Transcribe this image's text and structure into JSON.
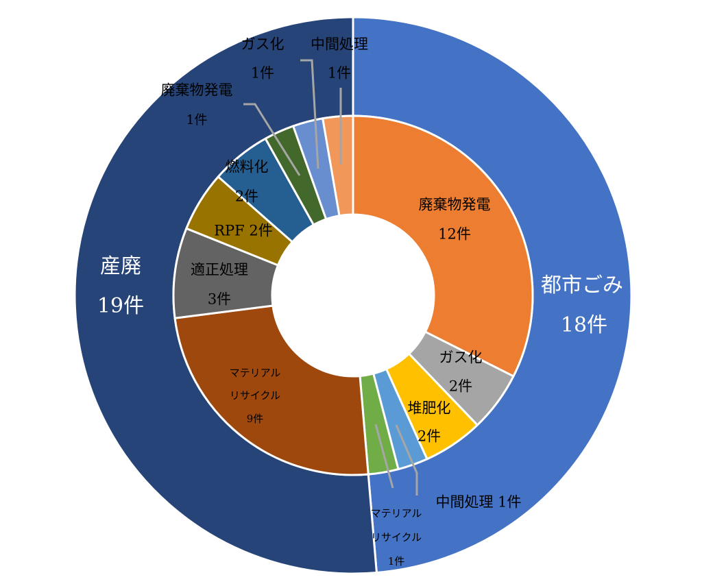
{
  "chart_data": {
    "type": "pie",
    "variant": "nested-donut",
    "outer": [
      {
        "label": "都市ごみ",
        "count": "18件",
        "value": 18,
        "color": "#4472C4"
      },
      {
        "label": "産廃",
        "count": "19件",
        "value": 19,
        "color": "#264478"
      }
    ],
    "inner": [
      {
        "label": "廃棄物発電",
        "count": "12件",
        "value": 12,
        "color": "#ED7D31",
        "group": "都市ごみ"
      },
      {
        "label": "ガス化",
        "count": "2件",
        "value": 2,
        "color": "#A5A5A5",
        "group": "都市ごみ"
      },
      {
        "label": "堆肥化",
        "count": "2件",
        "value": 2,
        "color": "#FFC000",
        "group": "都市ごみ"
      },
      {
        "label": "中間処理 1件",
        "count": "",
        "value": 1,
        "color": "#5B9BD5",
        "group": "都市ごみ"
      },
      {
        "label": "マテリアル",
        "label2": "リサイクル",
        "count": "1件",
        "value": 1,
        "color": "#70AD47",
        "group": "都市ごみ"
      },
      {
        "label": "マテリアル",
        "label2": "リサイクル",
        "count": "9件",
        "value": 9,
        "color": "#9E480E",
        "group": "産廃"
      },
      {
        "label": "適正処理",
        "count": "3件",
        "value": 3,
        "color": "#636363",
        "group": "産廃"
      },
      {
        "label": "RPF 2件",
        "count": "",
        "value": 2,
        "color": "#997300",
        "group": "産廃"
      },
      {
        "label": "燃料化",
        "count": "2件",
        "value": 2,
        "color": "#255E91",
        "group": "産廃"
      },
      {
        "label": "廃棄物発電",
        "count": "1件",
        "value": 1,
        "color": "#43682B",
        "group": "産廃"
      },
      {
        "label": "ガス化",
        "count": "1件",
        "value": 1,
        "color": "#698ED0",
        "group": "産廃"
      },
      {
        "label": "中間処理",
        "count": "1件",
        "value": 1,
        "color": "#F1975A",
        "group": "産廃"
      }
    ]
  }
}
